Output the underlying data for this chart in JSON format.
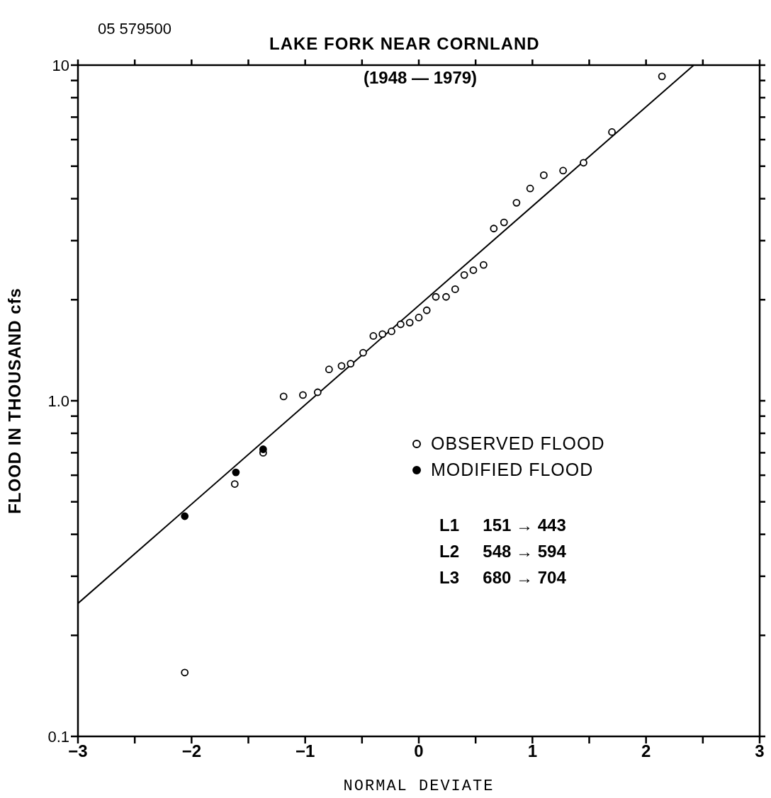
{
  "chart_data": {
    "type": "scatter",
    "title": "LAKE FORK NEAR CORNLAND",
    "subtitle": "(1948 — 1979)",
    "xlabel": "NORMAL DEVIATE",
    "ylabel": "FLOOD IN THOUSAND  cfs",
    "annotations": [
      "05 579500",
      "L1     151 → 443",
      "L2     548 → 594",
      "L3     680 → 704"
    ],
    "log": "y",
    "marker": "circle",
    "legend": "right",
    "grid": false,
    "xlim": [
      -3,
      3
    ],
    "xticks": [
      {
        "value": -3,
        "label": "−3"
      },
      {
        "value": -2.5,
        "label": null
      },
      {
        "value": -2,
        "label": "−2"
      },
      {
        "value": -1.5,
        "label": null
      },
      {
        "value": -1,
        "label": "−1"
      },
      {
        "value": -0.5,
        "label": null
      },
      0,
      {
        "value": 0.5,
        "label": null
      },
      1,
      {
        "value": 1.5,
        "label": null
      },
      2,
      {
        "value": 2.5,
        "label": null
      },
      3
    ],
    "ylim": [
      0.1,
      10
    ],
    "yticks": [
      0.1,
      {
        "value": 0.2,
        "label": null
      },
      {
        "value": 0.3,
        "label": null
      },
      {
        "value": 0.4,
        "label": null
      },
      {
        "value": 0.5,
        "label": null
      },
      {
        "value": 0.6,
        "label": null
      },
      {
        "value": 0.7,
        "label": null
      },
      {
        "value": 0.8,
        "label": null
      },
      {
        "value": 0.9,
        "label": null
      },
      {
        "value": 1,
        "label": "1.0"
      },
      {
        "value": 2,
        "label": null
      },
      {
        "value": 3,
        "label": null
      },
      {
        "value": 4,
        "label": null
      },
      {
        "value": 5,
        "label": null
      },
      {
        "value": 6,
        "label": null
      },
      {
        "value": 7,
        "label": null
      },
      {
        "value": 8,
        "label": null
      },
      {
        "value": 9,
        "label": null
      },
      10
    ],
    "series": [
      {
        "name": "OBSERVED FLOOD",
        "color": "#ffffff",
        "x": [
          -2.06,
          -1.62,
          -1.37,
          -1.19,
          -1.02,
          -0.89,
          -0.79,
          -0.68,
          -0.6,
          -0.49,
          -0.4,
          -0.32,
          -0.24,
          -0.16,
          -0.08,
          0,
          0.07,
          0.15,
          0.24,
          0.32,
          0.4,
          0.48,
          0.57,
          0.66,
          0.75,
          0.86,
          0.98,
          1.1,
          1.27,
          1.45,
          1.7,
          2.14
        ],
        "values": [
          0.155,
          0.565,
          0.7,
          1.03,
          1.04,
          1.06,
          1.24,
          1.27,
          1.29,
          1.39,
          1.56,
          1.58,
          1.61,
          1.69,
          1.71,
          1.77,
          1.86,
          2.04,
          2.04,
          2.15,
          2.37,
          2.45,
          2.54,
          3.26,
          3.4,
          3.89,
          4.29,
          4.7,
          4.85,
          5.12,
          6.32,
          9.26
        ]
      },
      {
        "name": "MODIFIED FLOOD",
        "color": "#000000",
        "x": [
          -2.06,
          -1.61,
          -1.37
        ],
        "values": [
          0.453,
          0.612,
          0.717
        ]
      },
      {
        "type": "line",
        "color": "#000000",
        "marker": "none",
        "x": [
          -3,
          2.42
        ],
        "values": [
          0.249,
          10
        ]
      }
    ]
  }
}
